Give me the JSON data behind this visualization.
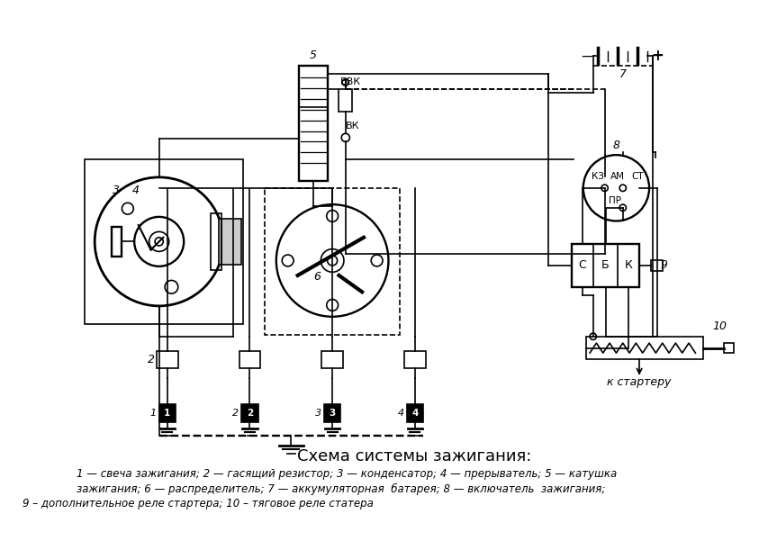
{
  "title": "Схема системы зажигания:",
  "legend_line1": "1 — свеча зажигания; 2 — гасящий резистор; 3 — конденсатор; 4 — прерыватель; 5 — катушка",
  "legend_line2": "зажигания; 6 — распределитель; 7 — аккумуляторная  батарея; 8 — включатель  зажигания;",
  "legend_line3": "9 – дополнительное реле стартера; 10 – тяговое реле статера",
  "bg_color": "#ffffff",
  "line_color": "#000000",
  "fig_width": 8.54,
  "fig_height": 6.11,
  "dpi": 100,
  "title_fontsize": 13,
  "legend_fontsize": 8.5
}
